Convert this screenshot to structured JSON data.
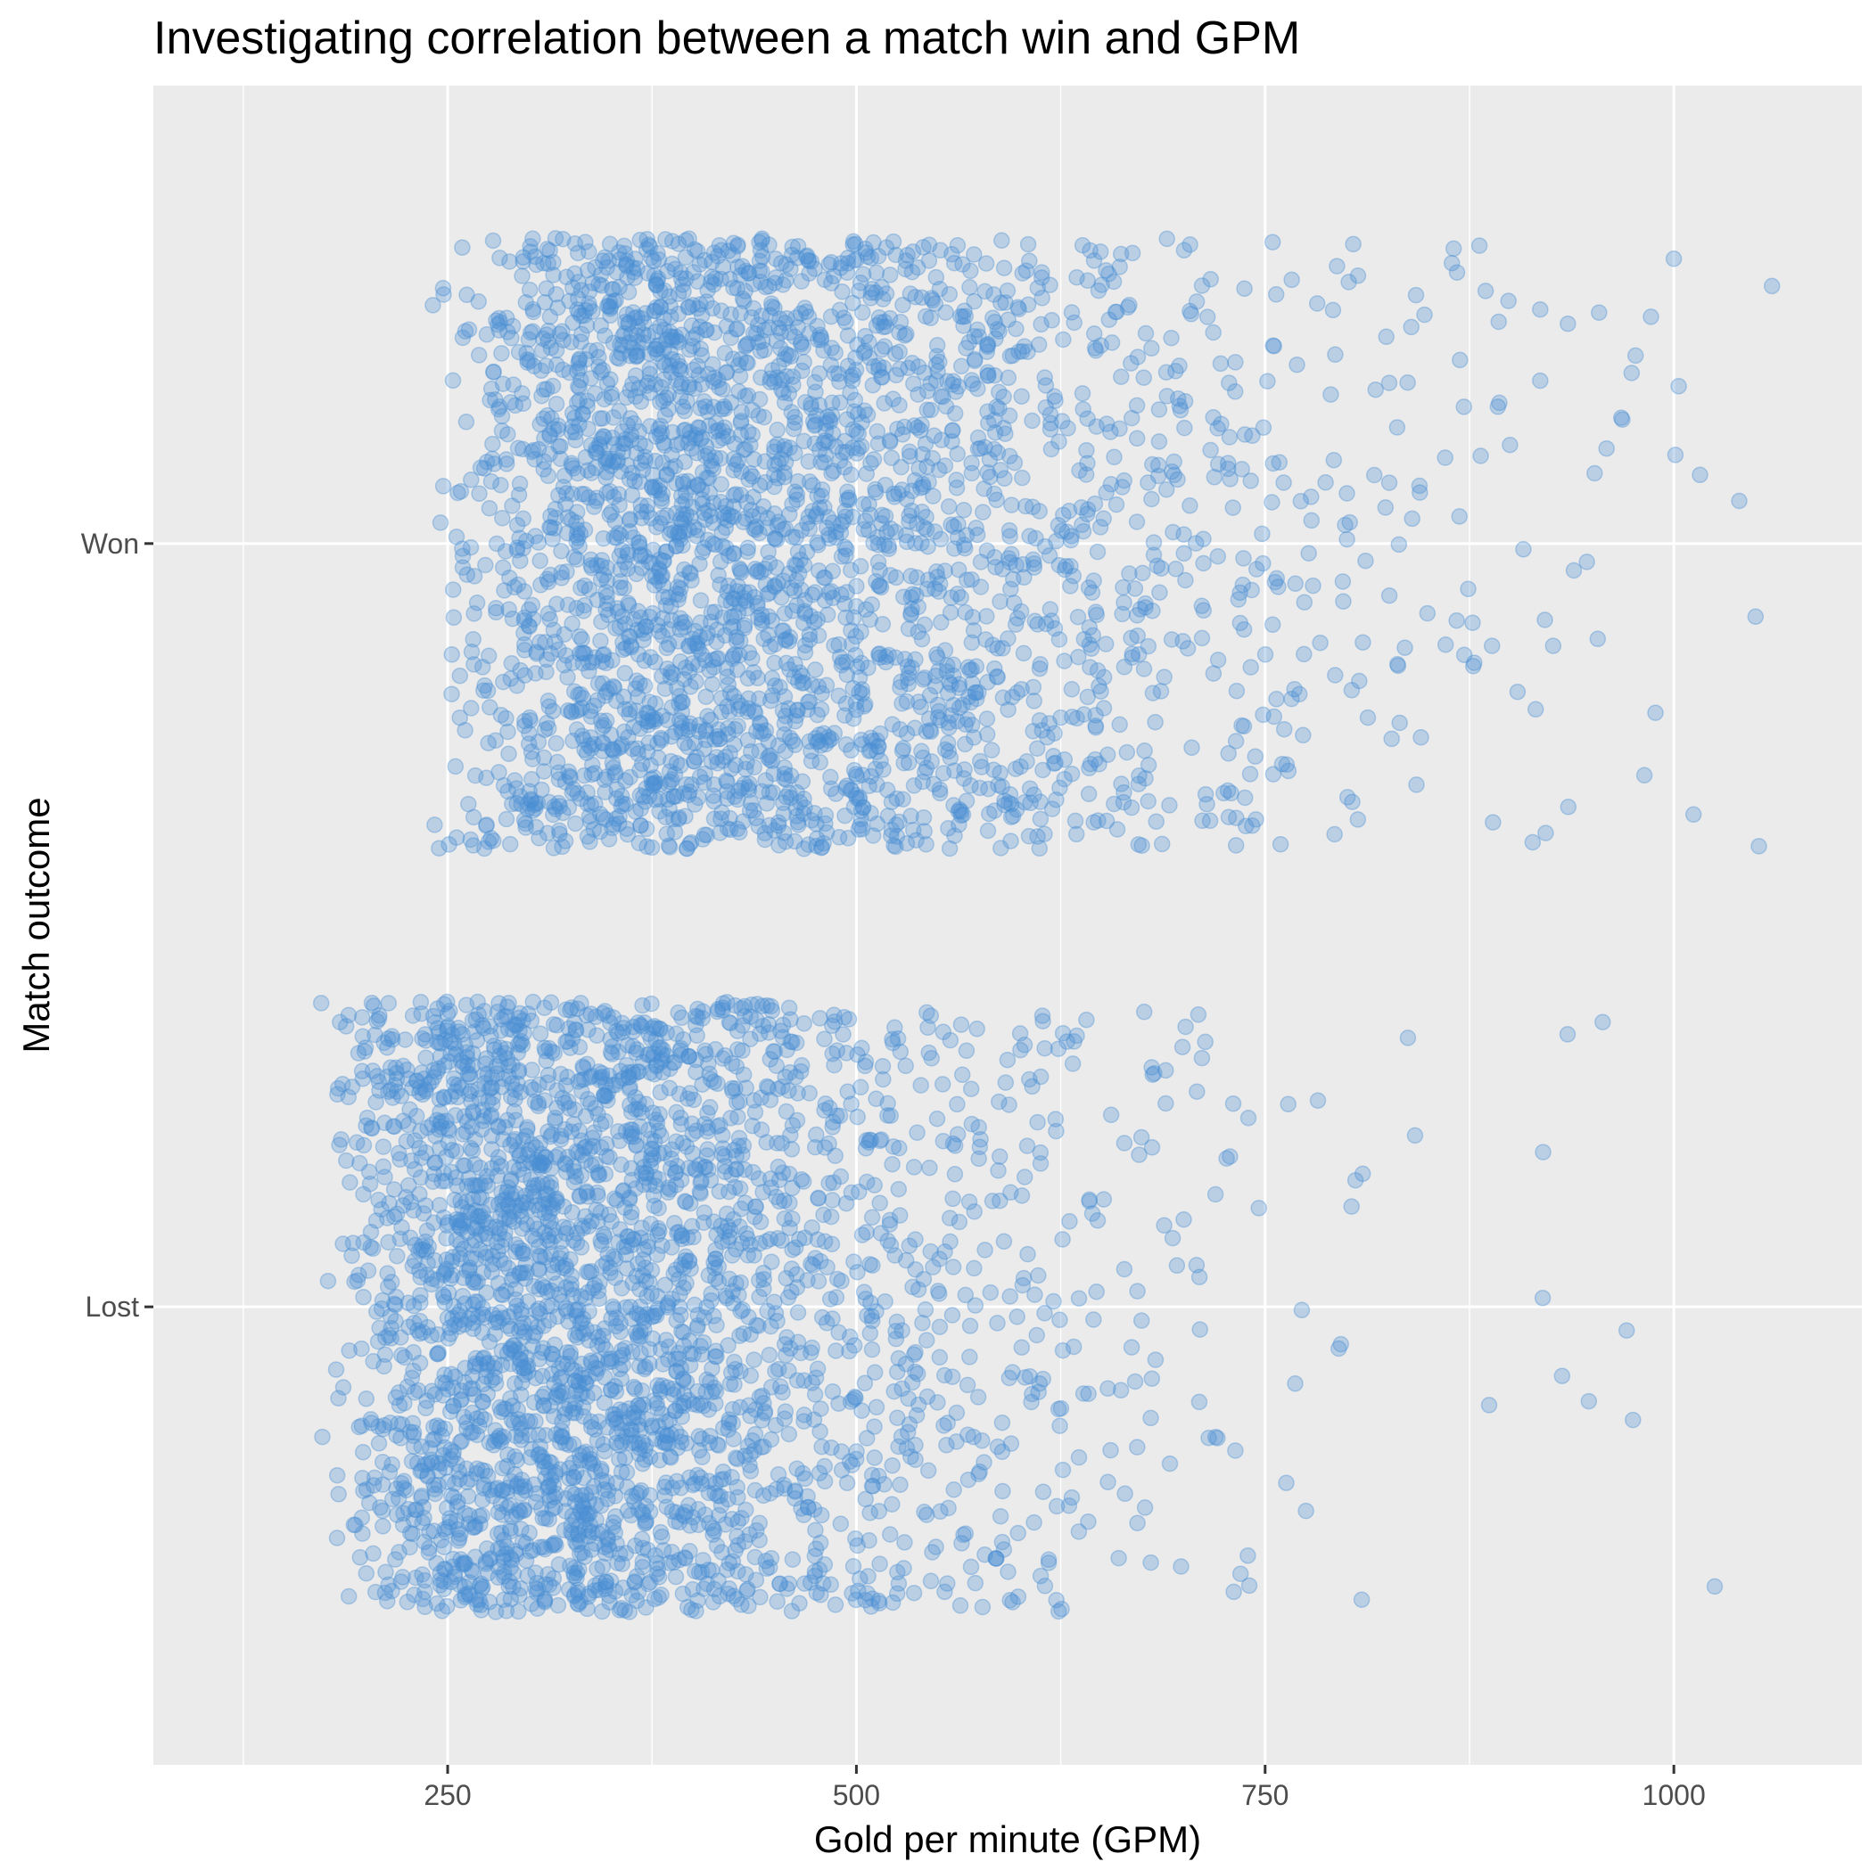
{
  "colors": {
    "panel_bg": "#EBEBEB",
    "point": "#4A8FD3",
    "grid": "#FFFFFF"
  },
  "chart_data": {
    "type": "scatter",
    "title": "Investigating correlation between a match win and GPM",
    "xlabel": "Gold per minute (GPM)",
    "ylabel": "Match outcome",
    "x_ticks": [
      250,
      500,
      750,
      1000
    ],
    "x_range": [
      70,
      1115
    ],
    "y_categories": [
      "Lost",
      "Won"
    ],
    "grid": true,
    "point_alpha": 0.3,
    "jitter_height": 0.4,
    "series": [
      {
        "category": "Won",
        "count": 3000,
        "x_min": 195,
        "x_max": 1065,
        "mean_approx": 470,
        "mode_approx": 320,
        "outliers": [
          982,
          1000,
          1016,
          1052,
          1060,
          1050,
          1012,
          1040,
          1003
        ]
      },
      {
        "category": "Lost",
        "count": 3000,
        "x_min": 115,
        "x_max": 1035,
        "mean_approx": 365,
        "mode_approx": 240,
        "outliers": [
          975,
          948,
          935,
          920,
          1025,
          887
        ]
      }
    ]
  }
}
